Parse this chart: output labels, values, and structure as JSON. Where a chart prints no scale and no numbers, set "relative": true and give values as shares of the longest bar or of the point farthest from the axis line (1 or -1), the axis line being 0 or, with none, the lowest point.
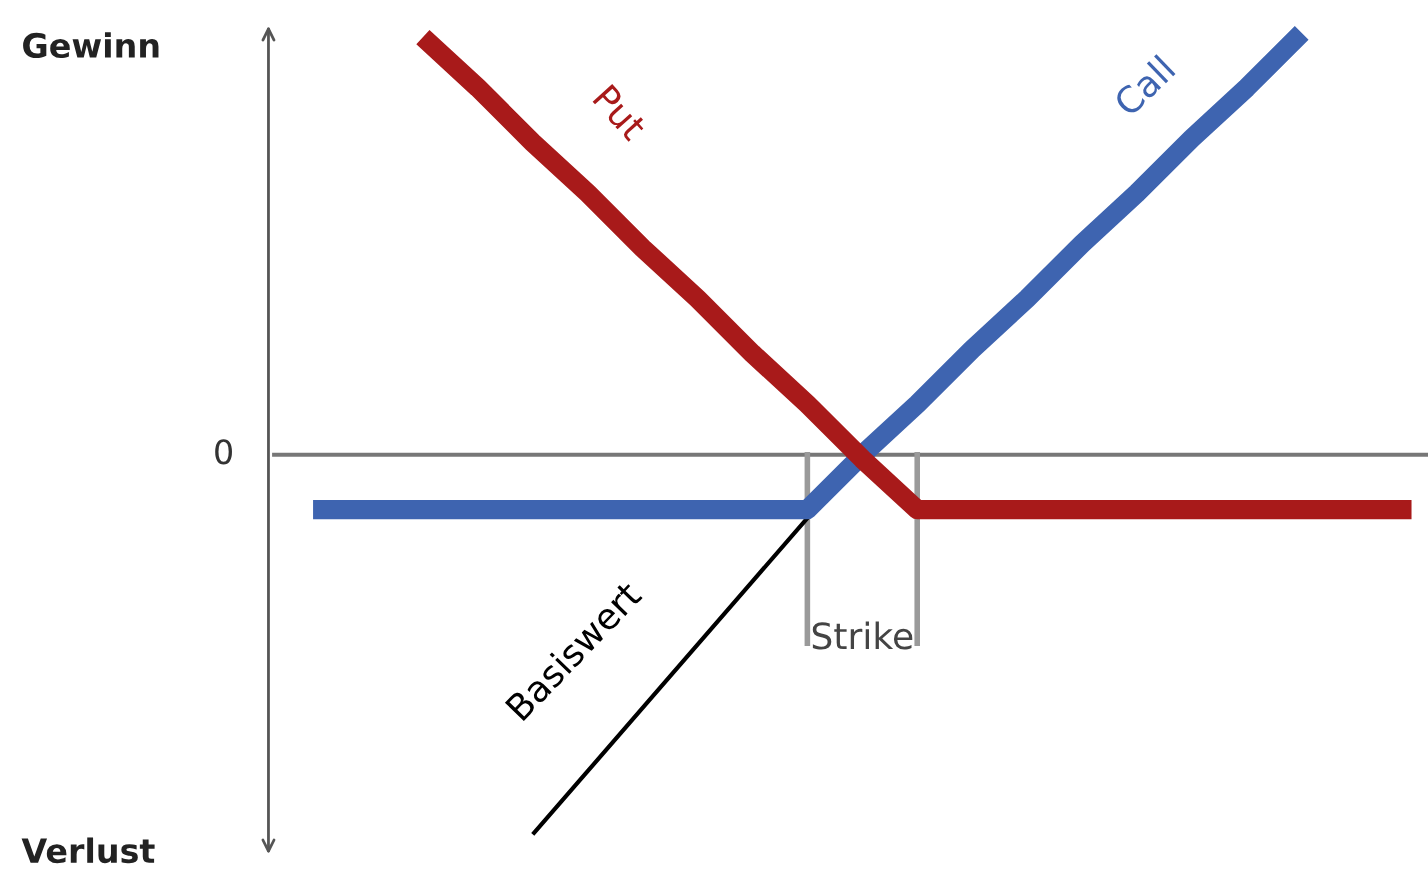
{
  "chart_data": {
    "type": "line",
    "relative": true,
    "categories": [
      null,
      null,
      null,
      null,
      null,
      null,
      null,
      null,
      null,
      null,
      null,
      null,
      null,
      null,
      null,
      null,
      null,
      null,
      null,
      null,
      null
    ],
    "series": [
      {
        "name": "Basiswert",
        "color": "#000000",
        "values": [
          null,
          null,
          null,
          null,
          -0.9,
          -0.75,
          -0.6,
          -0.45,
          -0.3,
          -0.15,
          0,
          null,
          null,
          null,
          null,
          null,
          null,
          null,
          null,
          null,
          null
        ]
      },
      {
        "name": "Call",
        "color": "#3e64b0",
        "values": [
          -0.13,
          -0.13,
          -0.13,
          -0.13,
          -0.13,
          -0.13,
          -0.13,
          -0.13,
          -0.13,
          -0.13,
          0.0,
          0.12,
          0.25,
          0.37,
          0.5,
          0.62,
          0.75,
          0.87,
          1.0,
          null,
          null
        ]
      },
      {
        "name": "Put",
        "color": "#a81a1a",
        "values": [
          null,
          null,
          0.99,
          0.87,
          0.74,
          0.62,
          0.49,
          0.37,
          0.24,
          0.12,
          -0.01,
          -0.13,
          -0.13,
          -0.13,
          -0.13,
          -0.13,
          -0.13,
          -0.13,
          -0.13,
          -0.13,
          -0.13
        ]
      }
    ],
    "annotations": [
      "Gewinn",
      "Verlust",
      "0",
      "Strike"
    ],
    "legend": false
  }
}
